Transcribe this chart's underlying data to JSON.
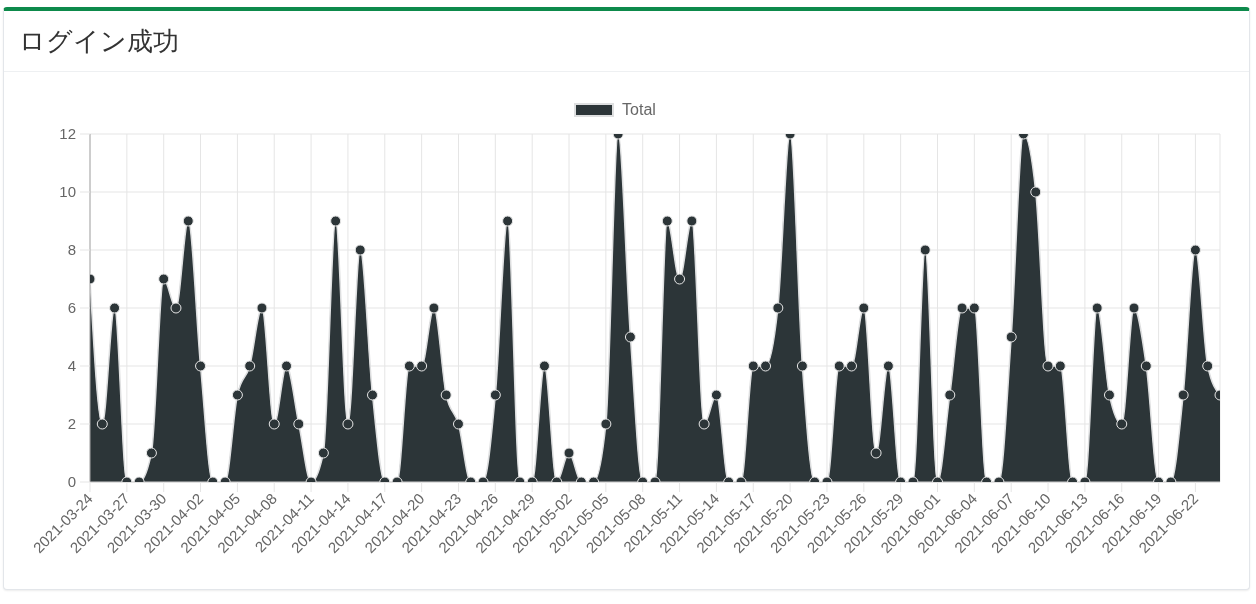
{
  "chart_data": {
    "type": "area",
    "title": "ログイン成功",
    "categories": [
      "2021-03-24",
      null,
      null,
      "2021-03-27",
      null,
      null,
      "2021-03-30",
      null,
      null,
      "2021-04-02",
      null,
      null,
      "2021-04-05",
      null,
      null,
      "2021-04-08",
      null,
      null,
      "2021-04-11",
      null,
      null,
      "2021-04-14",
      null,
      null,
      "2021-04-17",
      null,
      null,
      "2021-04-20",
      null,
      null,
      "2021-04-23",
      null,
      null,
      "2021-04-26",
      null,
      null,
      "2021-04-29",
      null,
      null,
      "2021-05-02",
      null,
      null,
      "2021-05-05",
      null,
      null,
      "2021-05-08",
      null,
      null,
      "2021-05-11",
      null,
      null,
      "2021-05-14",
      null,
      null,
      "2021-05-17",
      null,
      null,
      "2021-05-20",
      null,
      null,
      "2021-05-23",
      null,
      null,
      "2021-05-26",
      null,
      null,
      "2021-05-29",
      null,
      null,
      "2021-06-01",
      null,
      null,
      "2021-06-04",
      null,
      null,
      "2021-06-07",
      null,
      null,
      "2021-06-10",
      null,
      null,
      "2021-06-13",
      null,
      null,
      "2021-06-16",
      null,
      null,
      "2021-06-19",
      null,
      null,
      "2021-06-22",
      null,
      null
    ],
    "series": [
      {
        "name": "Total",
        "color": "#2c3538",
        "values": [
          7,
          2,
          6,
          0,
          0,
          1,
          7,
          6,
          9,
          4,
          0,
          0,
          3,
          4,
          6,
          2,
          4,
          2,
          0,
          1,
          9,
          2,
          8,
          3,
          0,
          0,
          4,
          4,
          6,
          3,
          2,
          0,
          0,
          3,
          9,
          0,
          0,
          4,
          0,
          1,
          0,
          0,
          2,
          12,
          5,
          0,
          0,
          9,
          7,
          9,
          2,
          3,
          0,
          0,
          4,
          4,
          6,
          12,
          4,
          0,
          0,
          4,
          4,
          6,
          1,
          4,
          0,
          0,
          8,
          0,
          3,
          6,
          6,
          0,
          0,
          5,
          12,
          10,
          4,
          4,
          0,
          0,
          6,
          3,
          2,
          6,
          4,
          0,
          0,
          3,
          8,
          4,
          3
        ]
      }
    ],
    "ylim": [
      0,
      12
    ],
    "yticks": [
      0,
      2,
      4,
      6,
      8,
      10,
      12
    ],
    "grid": true,
    "legend": "top",
    "marker": "circle"
  }
}
